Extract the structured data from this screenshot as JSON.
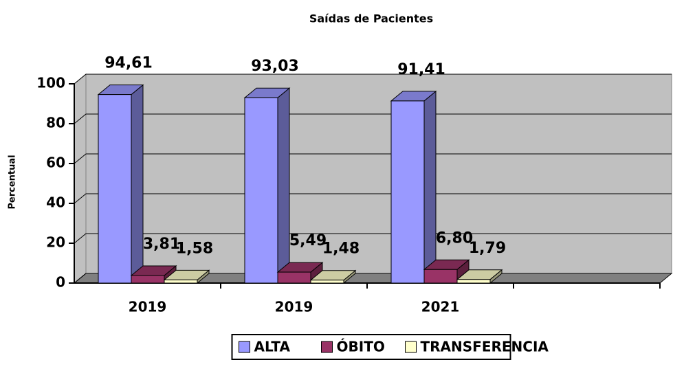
{
  "chart_data": {
    "type": "bar3d",
    "title": "Saídas de Pacientes",
    "y_label": "Percentual",
    "categories": [
      "2019",
      "2019",
      "2021",
      null
    ],
    "series": [
      {
        "name": "ALTA",
        "color": "#9999ff",
        "values": [
          94.61,
          93.03,
          91.41,
          null
        ],
        "value_labels": [
          "94,61",
          "93,03",
          "91,41",
          null
        ]
      },
      {
        "name": "ÓBITO",
        "color": "#993366",
        "values": [
          3.81,
          5.49,
          6.8,
          null
        ],
        "value_labels": [
          "3,81",
          "5,49",
          "6,80",
          null
        ]
      },
      {
        "name": "TRANSFERENCIA",
        "color": "#ffffcc",
        "values": [
          1.58,
          1.48,
          1.79,
          null
        ],
        "value_labels": [
          "1,58",
          "1,48",
          "1,79",
          null
        ]
      }
    ],
    "ylim": [
      0,
      100
    ],
    "yticks": [
      0,
      20,
      40,
      60,
      80,
      100
    ],
    "grid": true,
    "legend": "bottom"
  }
}
